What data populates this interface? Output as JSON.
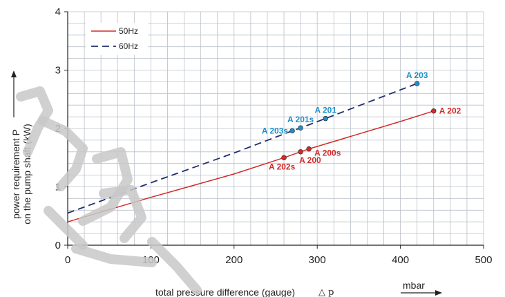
{
  "chart_data": {
    "type": "line",
    "xlabel": "total pressure difference (gauge)",
    "xlabel_symbol": "△ p",
    "x_unit": "mbar",
    "ylabel_lines": [
      "power requirement P",
      "on the pump shaft (kW)"
    ],
    "xlim": [
      0,
      500
    ],
    "ylim": [
      0,
      4
    ],
    "x_ticks": [
      0,
      100,
      200,
      300,
      400,
      500
    ],
    "y_ticks": [
      0,
      1,
      2,
      3,
      4
    ],
    "grid": true,
    "legend_position": "top-left",
    "series": [
      {
        "name": "50Hz",
        "color": "#d12b2b",
        "dash": "solid",
        "x": [
          0,
          100,
          200,
          260,
          280,
          290,
          400,
          440
        ],
        "y": [
          0.4,
          0.82,
          1.22,
          1.5,
          1.6,
          1.65,
          2.12,
          2.3
        ]
      },
      {
        "name": "60Hz",
        "color": "#1f2d6e",
        "dash": "dashed",
        "x": [
          0,
          100,
          200,
          270,
          280,
          310,
          420
        ],
        "y": [
          0.55,
          1.07,
          1.58,
          1.96,
          2.01,
          2.17,
          2.77
        ]
      }
    ],
    "points": [
      {
        "label": "A 202s",
        "x": 260,
        "y": 1.5,
        "color": "#d12b2b",
        "labelPos": "below-left"
      },
      {
        "label": "A 200",
        "x": 280,
        "y": 1.6,
        "color": "#d12b2b",
        "labelPos": "below"
      },
      {
        "label": "A 200s",
        "x": 290,
        "y": 1.65,
        "color": "#d12b2b",
        "labelPos": "right-below"
      },
      {
        "label": "A 202",
        "x": 440,
        "y": 2.3,
        "color": "#d12b2b",
        "labelPos": "right"
      },
      {
        "label": "A 203s",
        "x": 270,
        "y": 1.96,
        "color": "#1f8fc8",
        "labelPos": "left"
      },
      {
        "label": "A 201s",
        "x": 280,
        "y": 2.01,
        "color": "#1f8fc8",
        "labelPos": "above"
      },
      {
        "label": "A 201",
        "x": 310,
        "y": 2.17,
        "color": "#1f8fc8",
        "labelPos": "above"
      },
      {
        "label": "A 203",
        "x": 420,
        "y": 2.77,
        "color": "#1f8fc8",
        "labelPos": "above"
      }
    ]
  }
}
